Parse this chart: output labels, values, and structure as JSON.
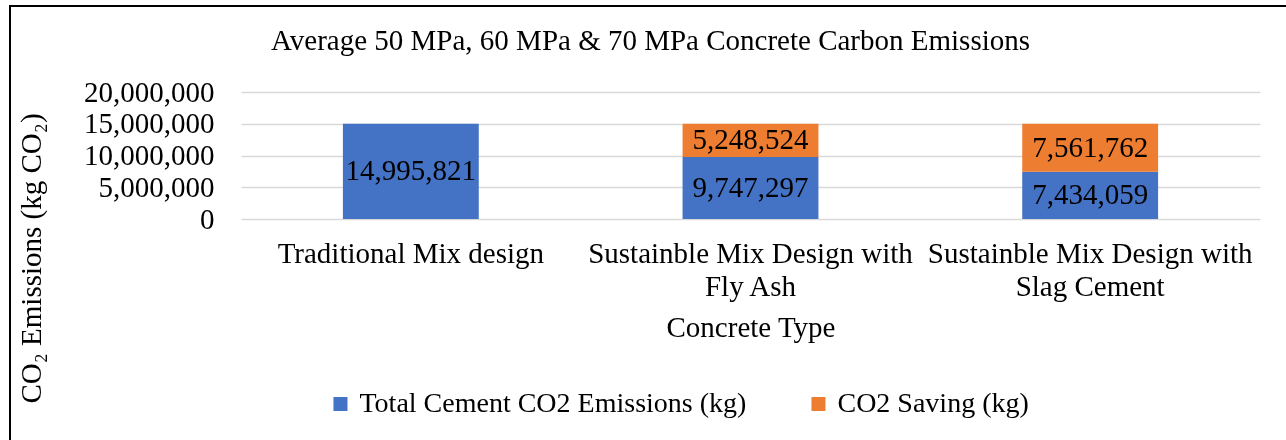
{
  "chart_data": {
    "type": "bar",
    "title": "Average 50 MPa, 60 MPa & 70 MPa Concrete Carbon Emissions",
    "xlabel": "Concrete Type",
    "ylabel": "CO₂ Emissions (kg CO₂)",
    "categories": [
      "Traditional Mix design",
      "Sustainble Mix Design with Fly Ash",
      "Sustainble Mix Design with Slag Cement"
    ],
    "series": [
      {
        "name": "Total Cement CO2 Emissions (kg)",
        "color": "#4472c4",
        "values": [
          14995821,
          9747297,
          7434059
        ],
        "value_labels": [
          "14,995,821",
          "9,747,297",
          "7,434,059"
        ]
      },
      {
        "name": "CO2 Saving (kg)",
        "color": "#ed7d31",
        "values": [
          null,
          5248524,
          7561762
        ],
        "value_labels": [
          null,
          "5,248,524",
          "7,561,762"
        ]
      }
    ],
    "stacked": true,
    "ylim": [
      0,
      20000000
    ],
    "yticks": [
      0,
      {
        "value": 5000000,
        "label": "5,000,000"
      },
      {
        "value": 10000000,
        "label": "10,000,000"
      },
      {
        "value": 15000000,
        "label": "15,000,000"
      },
      {
        "value": 20000000,
        "label": "20,000,000"
      }
    ],
    "grid": "y",
    "legend": "bottom"
  }
}
